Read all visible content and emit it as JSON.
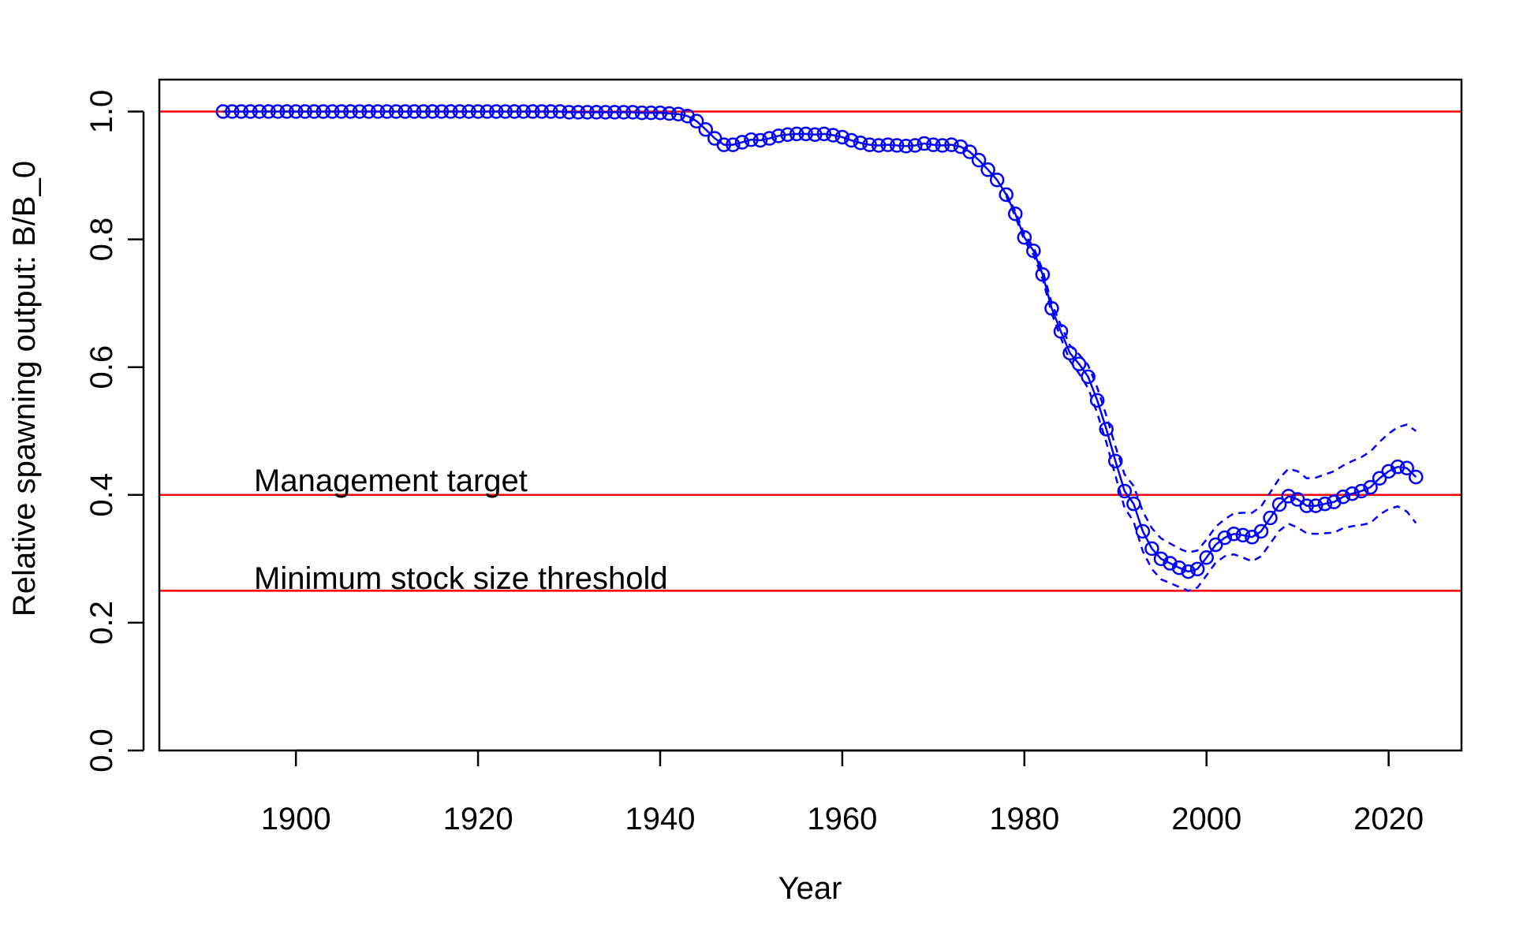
{
  "chart_data": {
    "type": "line",
    "xlabel": "Year",
    "ylabel": "Relative spawning output: B/B_0",
    "xlim": [
      1885,
      2028
    ],
    "ylim": [
      0,
      1.05
    ],
    "xticks": [
      1900,
      1920,
      1940,
      1960,
      1980,
      2000,
      2020
    ],
    "yticks": [
      0.0,
      0.2,
      0.4,
      0.6,
      0.8,
      1.0
    ],
    "ytick_labels": [
      "0.0",
      "0.2",
      "0.4",
      "0.6",
      "0.8",
      "1.0"
    ],
    "reference_lines": [
      {
        "y": 1.0,
        "label": "",
        "color": "#ff0000"
      },
      {
        "y": 0.4,
        "label": "Management target",
        "color": "#ff0000"
      },
      {
        "y": 0.25,
        "label": "Minimum stock size threshold",
        "color": "#ff0000"
      }
    ],
    "series": [
      {
        "marker": "open-circle",
        "line": "solid",
        "color": "#0000ff",
        "points": [
          [
            1892,
            1.0
          ],
          [
            1893,
            1.0
          ],
          [
            1894,
            1.0
          ],
          [
            1895,
            1.0
          ],
          [
            1896,
            1.0
          ],
          [
            1897,
            1.0
          ],
          [
            1898,
            1.0
          ],
          [
            1899,
            1.0
          ],
          [
            1900,
            1.0
          ],
          [
            1901,
            1.0
          ],
          [
            1902,
            1.0
          ],
          [
            1903,
            1.0
          ],
          [
            1904,
            1.0
          ],
          [
            1905,
            1.0
          ],
          [
            1906,
            1.0
          ],
          [
            1907,
            1.0
          ],
          [
            1908,
            1.0
          ],
          [
            1909,
            1.0
          ],
          [
            1910,
            1.0
          ],
          [
            1911,
            1.0
          ],
          [
            1912,
            1.0
          ],
          [
            1913,
            1.0
          ],
          [
            1914,
            1.0
          ],
          [
            1915,
            1.0
          ],
          [
            1916,
            1.0
          ],
          [
            1917,
            1.0
          ],
          [
            1918,
            1.0
          ],
          [
            1919,
            1.0
          ],
          [
            1920,
            1.0
          ],
          [
            1921,
            1.0
          ],
          [
            1922,
            1.0
          ],
          [
            1923,
            1.0
          ],
          [
            1924,
            1.0
          ],
          [
            1925,
            1.0
          ],
          [
            1926,
            1.0
          ],
          [
            1927,
            1.0
          ],
          [
            1928,
            1.0
          ],
          [
            1929,
            1.0
          ],
          [
            1930,
            0.999
          ],
          [
            1931,
            0.999
          ],
          [
            1932,
            0.999
          ],
          [
            1933,
            0.999
          ],
          [
            1934,
            0.999
          ],
          [
            1935,
            0.999
          ],
          [
            1936,
            0.999
          ],
          [
            1937,
            0.999
          ],
          [
            1938,
            0.998
          ],
          [
            1939,
            0.998
          ],
          [
            1940,
            0.998
          ],
          [
            1941,
            0.997
          ],
          [
            1942,
            0.996
          ],
          [
            1943,
            0.993
          ],
          [
            1944,
            0.985
          ],
          [
            1945,
            0.972
          ],
          [
            1946,
            0.958
          ],
          [
            1947,
            0.948
          ],
          [
            1948,
            0.948
          ],
          [
            1949,
            0.952
          ],
          [
            1950,
            0.956
          ],
          [
            1951,
            0.955
          ],
          [
            1952,
            0.958
          ],
          [
            1953,
            0.962
          ],
          [
            1954,
            0.964
          ],
          [
            1955,
            0.965
          ],
          [
            1956,
            0.965
          ],
          [
            1957,
            0.964
          ],
          [
            1958,
            0.965
          ],
          [
            1959,
            0.963
          ],
          [
            1960,
            0.96
          ],
          [
            1961,
            0.955
          ],
          [
            1962,
            0.951
          ],
          [
            1963,
            0.948
          ],
          [
            1964,
            0.947
          ],
          [
            1965,
            0.948
          ],
          [
            1966,
            0.947
          ],
          [
            1967,
            0.946
          ],
          [
            1968,
            0.947
          ],
          [
            1969,
            0.95
          ],
          [
            1970,
            0.948
          ],
          [
            1971,
            0.947
          ],
          [
            1972,
            0.948
          ],
          [
            1973,
            0.945
          ],
          [
            1974,
            0.937
          ],
          [
            1975,
            0.924
          ],
          [
            1976,
            0.909
          ],
          [
            1977,
            0.893
          ],
          [
            1978,
            0.87
          ],
          [
            1979,
            0.84
          ],
          [
            1980,
            0.803
          ],
          [
            1981,
            0.782
          ],
          [
            1982,
            0.745
          ],
          [
            1983,
            0.692
          ],
          [
            1984,
            0.656
          ],
          [
            1985,
            0.622
          ],
          [
            1986,
            0.605
          ],
          [
            1987,
            0.585
          ],
          [
            1988,
            0.548
          ],
          [
            1989,
            0.503
          ],
          [
            1990,
            0.453
          ],
          [
            1991,
            0.406
          ],
          [
            1992,
            0.386
          ],
          [
            1993,
            0.343
          ],
          [
            1994,
            0.316
          ],
          [
            1995,
            0.3
          ],
          [
            1996,
            0.293
          ],
          [
            1997,
            0.286
          ],
          [
            1998,
            0.28
          ],
          [
            1999,
            0.284
          ],
          [
            2000,
            0.302
          ],
          [
            2001,
            0.322
          ],
          [
            2002,
            0.333
          ],
          [
            2003,
            0.339
          ],
          [
            2004,
            0.337
          ],
          [
            2005,
            0.334
          ],
          [
            2006,
            0.343
          ],
          [
            2007,
            0.364
          ],
          [
            2008,
            0.385
          ],
          [
            2009,
            0.398
          ],
          [
            2010,
            0.393
          ],
          [
            2011,
            0.383
          ],
          [
            2012,
            0.383
          ],
          [
            2013,
            0.386
          ],
          [
            2014,
            0.389
          ],
          [
            2015,
            0.397
          ],
          [
            2016,
            0.402
          ],
          [
            2017,
            0.406
          ],
          [
            2018,
            0.412
          ],
          [
            2019,
            0.426
          ],
          [
            2020,
            0.437
          ],
          [
            2021,
            0.444
          ],
          [
            2022,
            0.442
          ],
          [
            2023,
            0.428
          ]
        ]
      },
      {
        "line": "dashed",
        "color": "#0000ff",
        "points": [
          [
            1978,
            0.872
          ],
          [
            1979,
            0.844
          ],
          [
            1980,
            0.808
          ],
          [
            1981,
            0.788
          ],
          [
            1982,
            0.752
          ],
          [
            1983,
            0.7
          ],
          [
            1984,
            0.666
          ],
          [
            1985,
            0.634
          ],
          [
            1986,
            0.62
          ],
          [
            1987,
            0.603
          ],
          [
            1988,
            0.568
          ],
          [
            1989,
            0.524
          ],
          [
            1990,
            0.476
          ],
          [
            1991,
            0.432
          ],
          [
            1992,
            0.414
          ],
          [
            1993,
            0.374
          ],
          [
            1994,
            0.348
          ],
          [
            1995,
            0.332
          ],
          [
            1996,
            0.324
          ],
          [
            1997,
            0.316
          ],
          [
            1998,
            0.31
          ],
          [
            1999,
            0.313
          ],
          [
            2000,
            0.33
          ],
          [
            2001,
            0.35
          ],
          [
            2002,
            0.362
          ],
          [
            2003,
            0.371
          ],
          [
            2004,
            0.372
          ],
          [
            2005,
            0.372
          ],
          [
            2006,
            0.382
          ],
          [
            2007,
            0.404
          ],
          [
            2008,
            0.426
          ],
          [
            2009,
            0.441
          ],
          [
            2010,
            0.437
          ],
          [
            2011,
            0.426
          ],
          [
            2012,
            0.427
          ],
          [
            2013,
            0.432
          ],
          [
            2014,
            0.437
          ],
          [
            2015,
            0.446
          ],
          [
            2016,
            0.453
          ],
          [
            2017,
            0.459
          ],
          [
            2018,
            0.468
          ],
          [
            2019,
            0.483
          ],
          [
            2020,
            0.496
          ],
          [
            2021,
            0.506
          ],
          [
            2022,
            0.51
          ],
          [
            2023,
            0.5
          ]
        ]
      },
      {
        "line": "dashed",
        "color": "#0000ff",
        "points": [
          [
            1978,
            0.868
          ],
          [
            1979,
            0.836
          ],
          [
            1980,
            0.798
          ],
          [
            1981,
            0.776
          ],
          [
            1982,
            0.738
          ],
          [
            1983,
            0.684
          ],
          [
            1984,
            0.646
          ],
          [
            1985,
            0.61
          ],
          [
            1986,
            0.59
          ],
          [
            1987,
            0.567
          ],
          [
            1988,
            0.528
          ],
          [
            1989,
            0.482
          ],
          [
            1990,
            0.43
          ],
          [
            1991,
            0.38
          ],
          [
            1992,
            0.358
          ],
          [
            1993,
            0.312
          ],
          [
            1994,
            0.284
          ],
          [
            1995,
            0.268
          ],
          [
            1996,
            0.262
          ],
          [
            1997,
            0.256
          ],
          [
            1998,
            0.25
          ],
          [
            1999,
            0.255
          ],
          [
            2000,
            0.274
          ],
          [
            2001,
            0.294
          ],
          [
            2002,
            0.304
          ],
          [
            2003,
            0.307
          ],
          [
            2004,
            0.302
          ],
          [
            2005,
            0.296
          ],
          [
            2006,
            0.304
          ],
          [
            2007,
            0.324
          ],
          [
            2008,
            0.344
          ],
          [
            2009,
            0.355
          ],
          [
            2010,
            0.349
          ],
          [
            2011,
            0.34
          ],
          [
            2012,
            0.339
          ],
          [
            2013,
            0.34
          ],
          [
            2014,
            0.341
          ],
          [
            2015,
            0.348
          ],
          [
            2016,
            0.351
          ],
          [
            2017,
            0.353
          ],
          [
            2018,
            0.356
          ],
          [
            2019,
            0.369
          ],
          [
            2020,
            0.378
          ],
          [
            2021,
            0.382
          ],
          [
            2022,
            0.374
          ],
          [
            2023,
            0.356
          ]
        ]
      }
    ]
  }
}
